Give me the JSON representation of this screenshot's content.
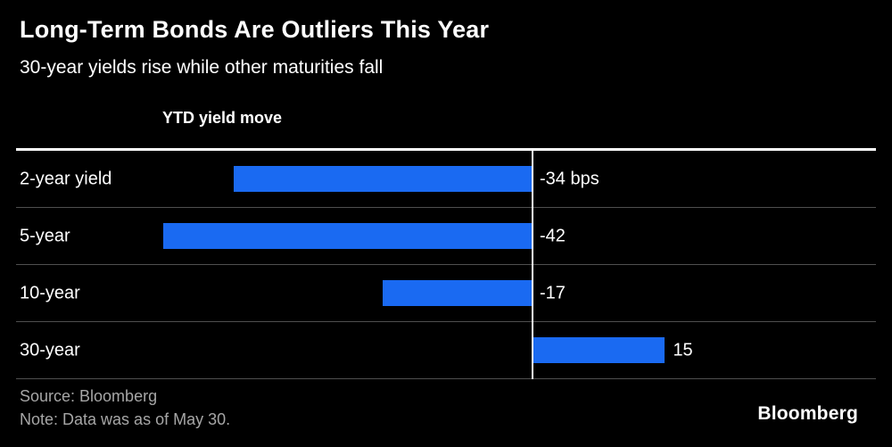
{
  "header": {
    "title": "Long-Term Bonds Are Outliers This Year",
    "subtitle": "30-year yields rise while other maturities fall"
  },
  "chart_data": {
    "type": "bar",
    "orientation": "horizontal",
    "axis_label": "YTD yield move",
    "categories": [
      "2-year yield",
      "5-year",
      "10-year",
      "30-year"
    ],
    "values": [
      -34,
      -42,
      -17,
      15
    ],
    "value_labels": [
      "-34 bps",
      "-42",
      "-17",
      "15"
    ],
    "unit": "bps",
    "xlim": [
      -42,
      40
    ],
    "baseline": 0,
    "grid": "row-separators",
    "bar_color": "#1a6af2"
  },
  "footer": {
    "source": "Source: Bloomberg",
    "note": "Note: Data was as of May 30.",
    "logo": "Bloomberg"
  }
}
